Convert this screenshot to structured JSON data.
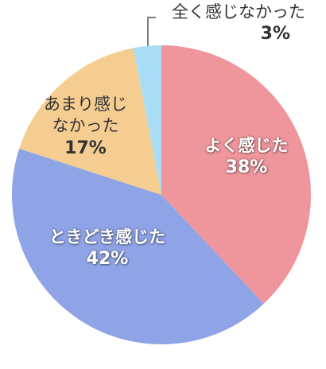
{
  "chart_data": {
    "type": "pie",
    "categories": [
      "よく感じた",
      "ときどき感じた",
      "あまり感じなかった",
      "全く感じなかった"
    ],
    "values": [
      38,
      42,
      17,
      3
    ],
    "value_labels": [
      "38%",
      "42%",
      "17%",
      "3%"
    ],
    "colors": [
      "#ef959c",
      "#8fa4e6",
      "#f5cd91",
      "#a9ddf6"
    ]
  }
}
